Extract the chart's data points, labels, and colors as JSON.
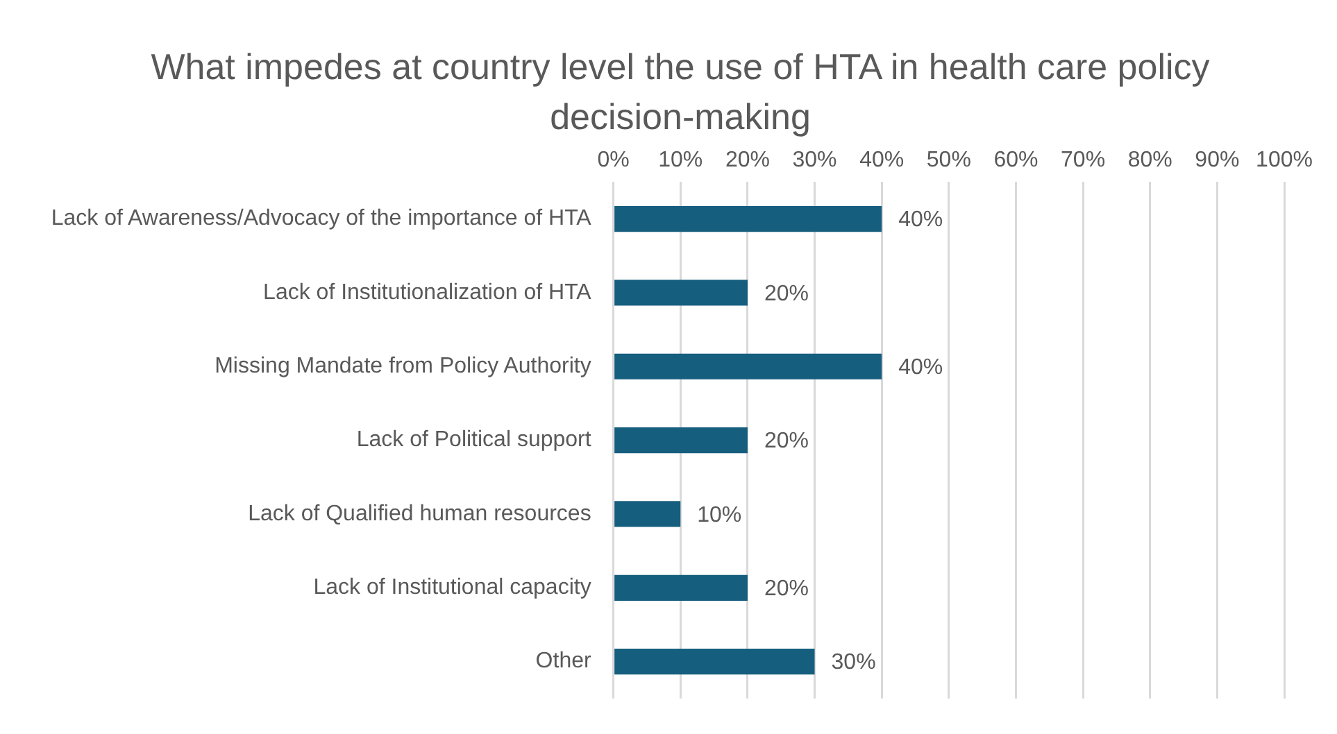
{
  "chart_data": {
    "type": "bar",
    "orientation": "horizontal",
    "title": "What impedes at country level the use of HTA in health care policy decision-making",
    "categories": [
      "Lack of Awareness/Advocacy of the importance of HTA",
      "Lack of Institutionalization of HTA",
      "Missing Mandate from Policy Authority",
      "Lack of Political support",
      "Lack of Qualified human resources",
      "Lack of Institutional capacity",
      "Other"
    ],
    "values": [
      40,
      20,
      40,
      20,
      10,
      20,
      30
    ],
    "value_labels": [
      "40%",
      "20%",
      "40%",
      "20%",
      "10%",
      "20%",
      "30%"
    ],
    "color": "#165e7e",
    "xlim": [
      0,
      100
    ],
    "xticks": [
      {
        "value": 0,
        "label": "0%"
      },
      {
        "value": 10,
        "label": "10%"
      },
      {
        "value": 20,
        "label": "20%"
      },
      {
        "value": 30,
        "label": "30%"
      },
      {
        "value": 40,
        "label": "40%"
      },
      {
        "value": 50,
        "label": "50%"
      },
      {
        "value": 60,
        "label": "60%"
      },
      {
        "value": 70,
        "label": "70%"
      },
      {
        "value": 80,
        "label": "80%"
      },
      {
        "value": 90,
        "label": "90%"
      },
      {
        "value": 100,
        "label": "100%"
      }
    ],
    "grid": "x",
    "legend": false
  }
}
